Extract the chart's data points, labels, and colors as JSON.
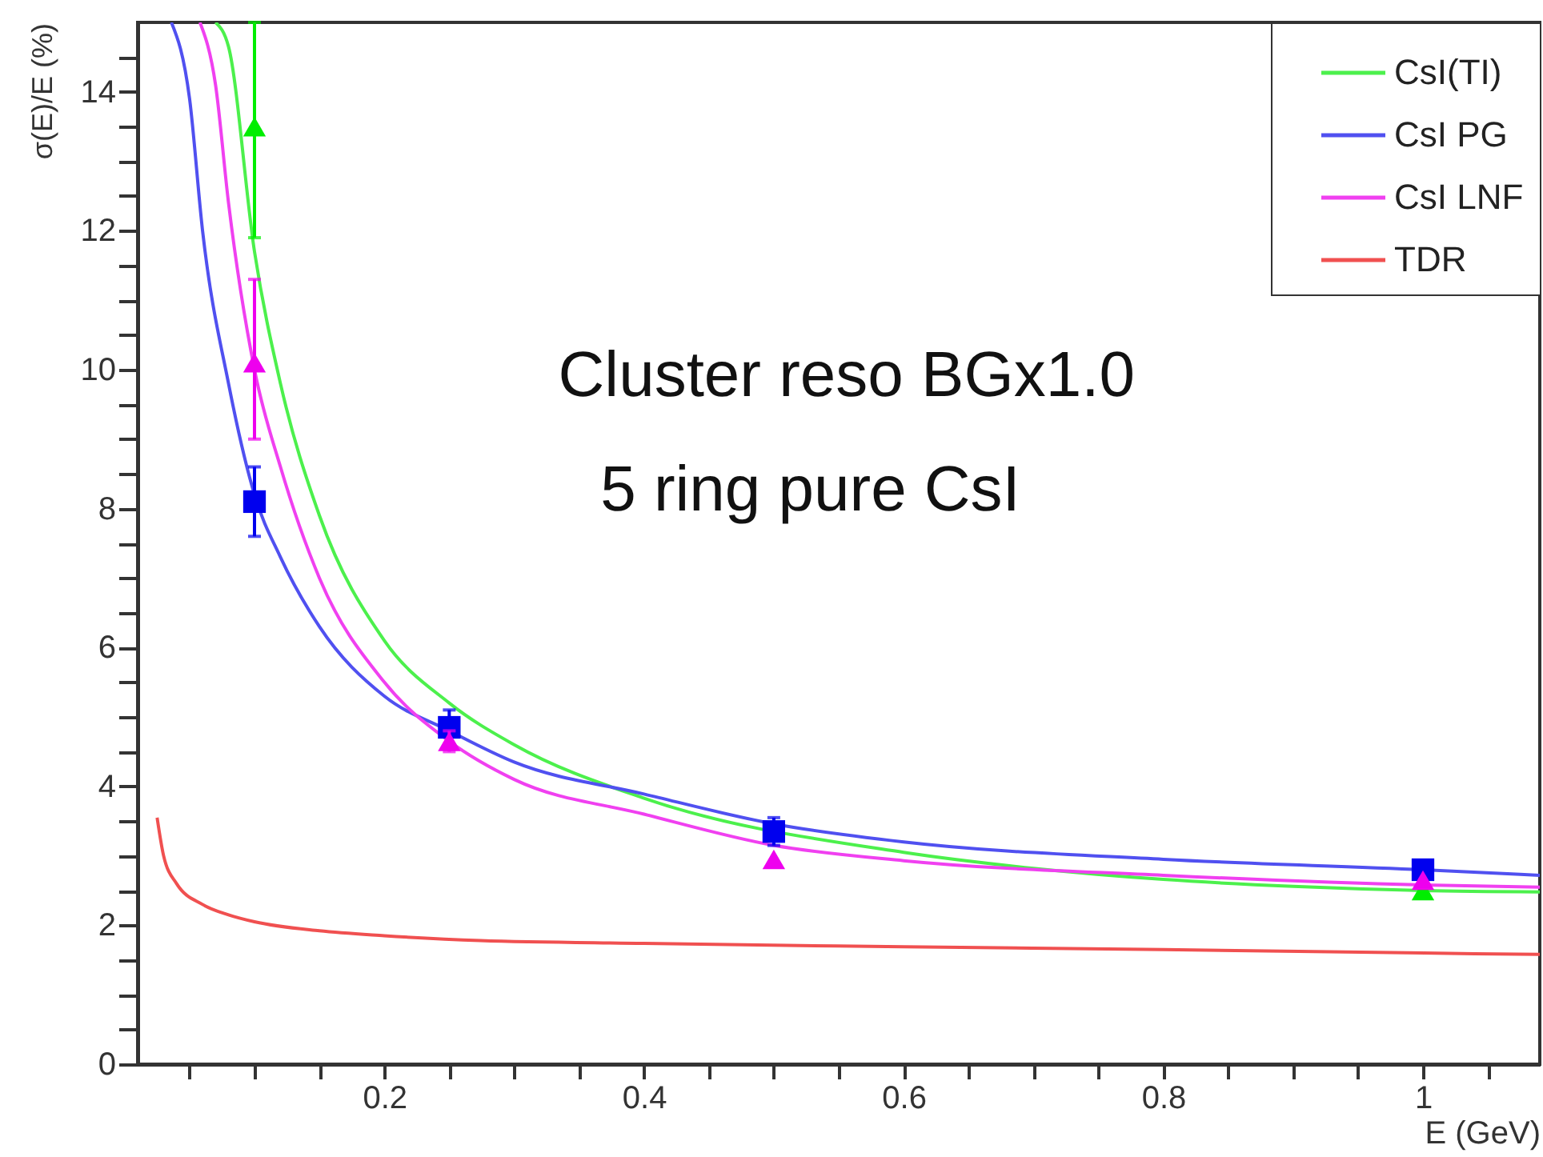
{
  "chart_data": {
    "type": "line",
    "xlabel": "E (GeV)",
    "ylabel": "σ(E)/E (%)",
    "annotations": [
      "Cluster reso BGx1.0",
      "5 ring pure CsI"
    ],
    "xlim": [
      0.01,
      1.09
    ],
    "ylim": [
      0,
      15
    ],
    "xticks": [
      {
        "value": 0.05,
        "label": null
      },
      {
        "value": 0.1,
        "label": null
      },
      {
        "value": 0.15,
        "label": null
      },
      0.2,
      {
        "value": 0.25,
        "label": null
      },
      {
        "value": 0.3,
        "label": null
      },
      {
        "value": 0.35,
        "label": null
      },
      0.4,
      {
        "value": 0.45,
        "label": null
      },
      {
        "value": 0.5,
        "label": null
      },
      {
        "value": 0.55,
        "label": null
      },
      0.6,
      {
        "value": 0.65,
        "label": null
      },
      {
        "value": 0.7,
        "label": null
      },
      {
        "value": 0.75,
        "label": null
      },
      0.8,
      {
        "value": 0.85,
        "label": null
      },
      {
        "value": 0.9,
        "label": null
      },
      {
        "value": 0.95,
        "label": null
      },
      1,
      {
        "value": 1.05,
        "label": null
      }
    ],
    "yticks": [
      0,
      {
        "value": 0.5,
        "label": null
      },
      {
        "value": 1,
        "label": null
      },
      {
        "value": 1.5,
        "label": null
      },
      2,
      {
        "value": 2.5,
        "label": null
      },
      {
        "value": 3,
        "label": null
      },
      {
        "value": 3.5,
        "label": null
      },
      4,
      {
        "value": 4.5,
        "label": null
      },
      {
        "value": 5,
        "label": null
      },
      {
        "value": 5.5,
        "label": null
      },
      6,
      {
        "value": 6.5,
        "label": null
      },
      {
        "value": 7,
        "label": null
      },
      {
        "value": 7.5,
        "label": null
      },
      8,
      {
        "value": 8.5,
        "label": null
      },
      {
        "value": 9,
        "label": null
      },
      {
        "value": 9.5,
        "label": null
      },
      10,
      {
        "value": 10.5,
        "label": null
      },
      {
        "value": 11,
        "label": null
      },
      {
        "value": 11.5,
        "label": null
      },
      12,
      {
        "value": 12.5,
        "label": null
      },
      {
        "value": 13,
        "label": null
      },
      {
        "value": 13.5,
        "label": null
      },
      14,
      {
        "value": 14.5,
        "label": null
      }
    ],
    "grid": false,
    "legend": "top right",
    "series": [
      {
        "name": "CsI(TI)",
        "color": "#4cf04c",
        "x": [
          0.07,
          0.08,
          0.1,
          0.12,
          0.15,
          0.2,
          0.25,
          0.3,
          0.4,
          0.6,
          0.7,
          0.8,
          0.9,
          1.0,
          1.09
        ],
        "values": [
          15,
          14.65,
          11.7,
          9.8,
          7.9,
          6.1,
          5.2,
          4.6,
          3.83,
          3.05,
          2.82,
          2.66,
          2.56,
          2.5,
          2.48
        ]
      },
      {
        "name": "CsI PG",
        "color": "#5050f0",
        "x": [
          0.036,
          0.05,
          0.06,
          0.08,
          0.1,
          0.12,
          0.15,
          0.2,
          0.25,
          0.3,
          0.4,
          0.5,
          0.6,
          0.8,
          1.0,
          1.09
        ],
        "values": [
          15,
          13.9,
          12,
          9.8,
          8.2,
          7.3,
          6.3,
          5.3,
          4.8,
          4.35,
          3.89,
          3.46,
          3.2,
          2.95,
          2.8,
          2.72
        ]
      },
      {
        "name": "CsI LNF",
        "color": "#f040f0",
        "x": [
          0.058,
          0.07,
          0.08,
          0.1,
          0.12,
          0.15,
          0.2,
          0.25,
          0.3,
          0.4,
          0.5,
          0.6,
          0.8,
          1.0,
          1.09
        ],
        "values": [
          15,
          14.1,
          12.4,
          10.0,
          8.6,
          7.0,
          5.5,
          4.65,
          4.1,
          3.6,
          3.15,
          2.93,
          2.72,
          2.58,
          2.55
        ]
      },
      {
        "name": "TDR",
        "color": "#f05050",
        "x": [
          0.025,
          0.03,
          0.04,
          0.06,
          0.08,
          0.1,
          0.15,
          0.2,
          0.274,
          0.4,
          0.6,
          0.8,
          1.0,
          1.09
        ],
        "values": [
          3.55,
          3.0,
          2.6,
          2.3,
          2.15,
          2.05,
          1.92,
          1.85,
          1.78,
          1.74,
          1.69,
          1.65,
          1.6,
          1.58
        ]
      },
      {
        "type": "scatter",
        "marker": "triangle",
        "color": "#00ee00",
        "x": [
          0.1,
          0.25,
          0.5,
          1.0
        ],
        "values": [
          13.5,
          null,
          null,
          2.5
        ],
        "errors": [
          [
            11.9,
            15
          ],
          null,
          null,
          null
        ]
      },
      {
        "type": "scatter",
        "marker": "square",
        "color": "#0000ee",
        "x": [
          0.1,
          0.25,
          0.5,
          1.0
        ],
        "values": [
          8.1,
          4.85,
          3.35,
          2.8
        ],
        "errors": [
          [
            7.6,
            8.6
          ],
          [
            4.6,
            5.1
          ],
          [
            3.15,
            3.55
          ],
          null
        ]
      },
      {
        "type": "scatter",
        "marker": "triangle",
        "color": "#ee00ee",
        "x": [
          0.1,
          0.25,
          0.5,
          1.0
        ],
        "values": [
          10.1,
          4.65,
          2.95,
          2.65
        ],
        "errors": [
          [
            9.0,
            11.3
          ],
          [
            4.5,
            4.8
          ],
          null,
          null
        ]
      }
    ]
  }
}
